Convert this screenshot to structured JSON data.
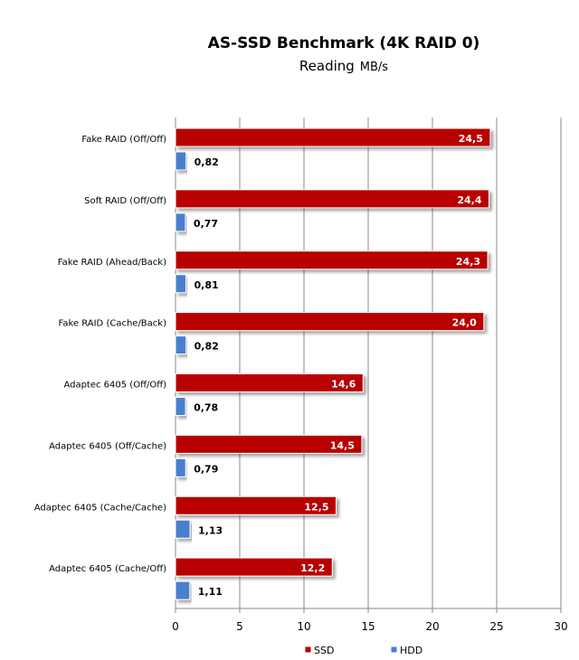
{
  "chart_data": {
    "type": "bar",
    "orientation": "horizontal",
    "title": "AS-SSD Benchmark (4K RAID 0)",
    "subtitle": "Reading",
    "unit": "MB/s",
    "categories": [
      "Fake RAID (Off/Off)",
      "Soft RAID (Off/Off)",
      "Fake RAID (Ahead/Back)",
      "Fake RAID (Cache/Back)",
      "Adaptec 6405  (Off/Off)",
      "Adaptec 6405  (Off/Cache)",
      "Adaptec 6405  (Cache/Cache)",
      "Adaptec 6405  (Cache/Off)"
    ],
    "series": [
      {
        "name": "SSD",
        "color": "#b80000",
        "values": [
          24.5,
          24.4,
          24.3,
          24.0,
          14.6,
          14.5,
          12.5,
          12.2
        ],
        "labels": [
          "24,5",
          "24,4",
          "24,3",
          "24,0",
          "14,6",
          "14,5",
          "12,5",
          "12,2"
        ]
      },
      {
        "name": "HDD",
        "color": "#4a7fcf",
        "values": [
          0.82,
          0.77,
          0.81,
          0.82,
          0.78,
          0.79,
          1.13,
          1.11
        ],
        "labels": [
          "0,82",
          "0,77",
          "0,81",
          "0,82",
          "0,78",
          "0,79",
          "1,13",
          "1,11"
        ]
      }
    ],
    "xlim": [
      0,
      30
    ],
    "xticks": [
      0,
      5,
      10,
      15,
      20,
      25,
      30
    ],
    "grid": true,
    "legend": "bottom"
  }
}
